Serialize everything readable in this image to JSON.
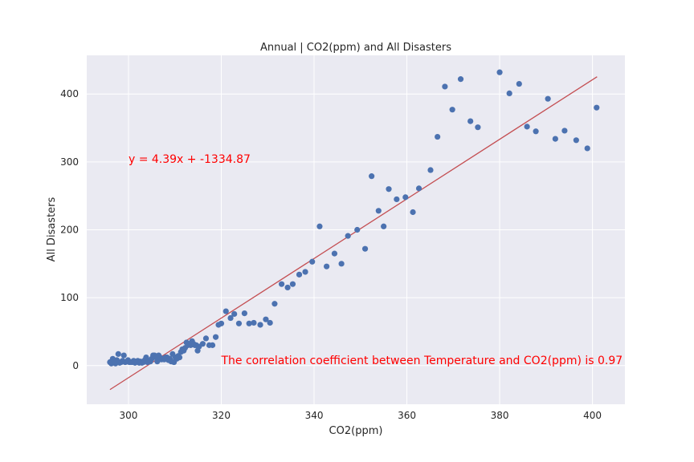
{
  "chart_data": {
    "type": "scatter",
    "title": "Annual | CO2(ppm) and All Disasters",
    "xlabel": "CO2(ppm)",
    "ylabel": "All Disasters",
    "xlim": [
      291,
      407
    ],
    "ylim": [
      -57,
      457
    ],
    "x_ticks": [
      300,
      320,
      340,
      360,
      380,
      400
    ],
    "y_ticks": [
      0,
      100,
      200,
      300,
      400
    ],
    "grid": true,
    "background_color": "#eaeaf2",
    "grid_color": "#ffffff",
    "point_color": "#4c72b0",
    "line_color": "#c44e52",
    "annotation_color": "#ff0000",
    "fit_line": {
      "slope": 4.39,
      "intercept": -1334.87,
      "x_range": [
        296,
        401
      ]
    },
    "annotations": [
      {
        "text": "y = 4.39x + -1334.87",
        "x": 300,
        "y": 300
      },
      {
        "text": "The correlation coefficient between Temperature and CO2(ppm) is 0.97",
        "x": 320,
        "y": 2
      }
    ],
    "series": [
      {
        "x": [
          296.0,
          296.3,
          296.6,
          296.9,
          297.2,
          297.5,
          297.8,
          298.1,
          298.4,
          298.7,
          299.0,
          299.3,
          299.6,
          299.9,
          300.2,
          300.5,
          300.8,
          301.1,
          301.4,
          301.7,
          302.0,
          302.3,
          302.6,
          302.9,
          303.2,
          303.5,
          303.8,
          304.1,
          304.4,
          304.7,
          305.0,
          305.3,
          305.6,
          305.9,
          306.2,
          306.5,
          306.8,
          307.1,
          307.4,
          307.7,
          308.0,
          308.3,
          308.6,
          308.9,
          309.2,
          309.5,
          309.8,
          310.1,
          310.4,
          310.7,
          311.0,
          311.3,
          311.6,
          311.9,
          312.2,
          312.5,
          312.8,
          313.1,
          313.4,
          313.7,
          314.0,
          314.3,
          314.6,
          314.9,
          315.2,
          316.0,
          316.7,
          317.4,
          318.1,
          318.8,
          319.4,
          320.0,
          321.0,
          322.0,
          322.8,
          323.8,
          325.0,
          326.0,
          327.0,
          328.4,
          329.6,
          330.5,
          331.5,
          333.0,
          334.3,
          335.4,
          336.8,
          338.1,
          339.6,
          341.2,
          342.7,
          344.4,
          345.9,
          347.3,
          349.3,
          351.0,
          352.4,
          353.9,
          355.0,
          356.1,
          357.8,
          359.7,
          361.3,
          362.6,
          365.1,
          366.6,
          368.2,
          369.8,
          371.6,
          373.7,
          375.3,
          380.0,
          382.1,
          384.2,
          385.9,
          387.8,
          390.4,
          392.0,
          394.0,
          396.5,
          398.9,
          400.9
        ],
        "y": [
          5,
          3,
          10,
          6,
          3,
          8,
          17,
          4,
          5,
          7,
          15,
          5,
          6,
          8,
          5,
          5,
          5,
          7,
          4,
          6,
          7,
          4,
          6,
          4,
          5,
          8,
          12,
          5,
          7,
          6,
          10,
          15,
          15,
          12,
          6,
          15,
          12,
          9,
          10,
          9,
          12,
          12,
          8,
          10,
          6,
          17,
          5,
          12,
          10,
          14,
          12,
          20,
          24,
          22,
          26,
          34,
          30,
          32,
          30,
          36,
          32,
          30,
          30,
          22,
          28,
          32,
          40,
          30,
          30,
          42,
          60,
          62,
          80,
          70,
          76,
          62,
          77,
          62,
          63,
          60,
          68,
          63,
          91,
          120,
          115,
          120,
          134,
          138,
          153,
          205,
          146,
          165,
          150,
          191,
          200,
          172,
          279,
          228,
          205,
          260,
          245,
          248,
          226,
          261,
          288,
          337,
          411,
          377,
          422,
          360,
          351,
          432,
          401,
          415,
          352,
          345,
          393,
          334,
          346,
          332,
          320,
          380
        ]
      }
    ]
  }
}
